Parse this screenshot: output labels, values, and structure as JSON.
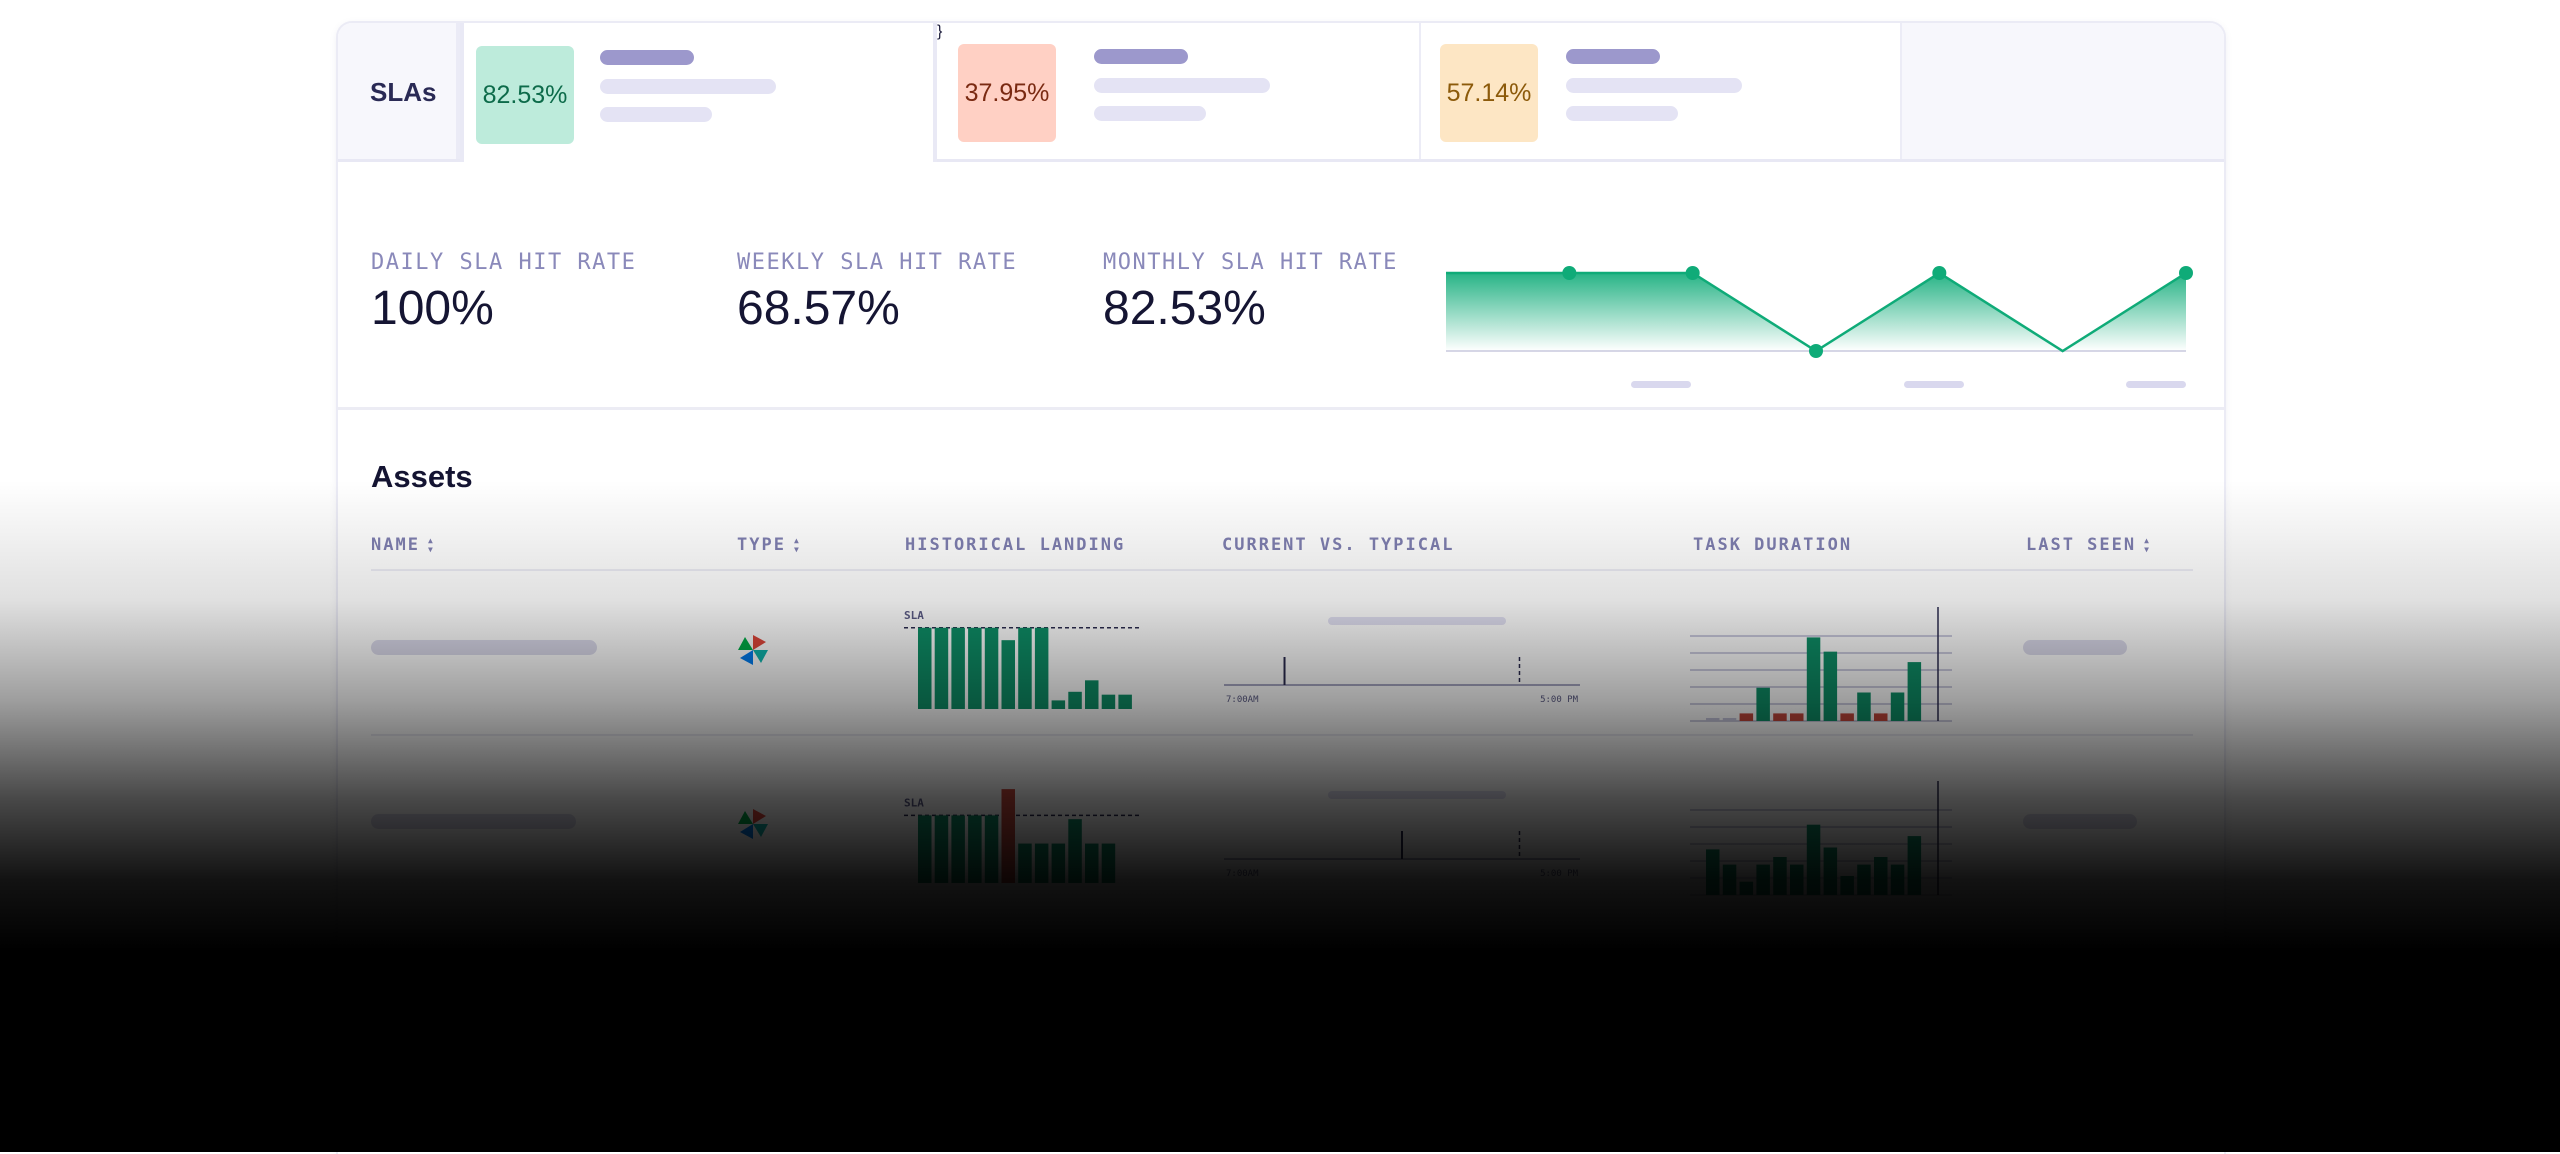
{
  "tabs": {
    "label": "SLAs",
    "items": [
      {
        "value": "82.53%",
        "tone": "green",
        "active": true
      },
      {
        "value": "37.95%",
        "tone": "red",
        "active": false
      },
      {
        "value": "57.14%",
        "tone": "amber",
        "active": false
      }
    ]
  },
  "stats": [
    {
      "label": "DAILY SLA HIT RATE",
      "value": "100%"
    },
    {
      "label": "WEEKLY SLA HIT RATE",
      "value": "68.57%"
    },
    {
      "label": "MONTHLY SLA HIT RATE",
      "value": "82.53%"
    }
  ],
  "trend_chart": {
    "type": "line",
    "values": [
      100,
      100,
      100,
      0,
      100,
      0,
      100
    ],
    "markers": [
      false,
      true,
      true,
      true,
      true,
      false,
      true
    ],
    "ylim": [
      0,
      100
    ],
    "color": "#0fab78"
  },
  "assets": {
    "title": "Assets",
    "columns": [
      {
        "label": "NAME",
        "sortable": true
      },
      {
        "label": "TYPE",
        "sortable": true
      },
      {
        "label": "HISTORICAL LANDING",
        "sortable": false
      },
      {
        "label": "CURRENT VS. TYPICAL",
        "sortable": false
      },
      {
        "label": "TASK DURATION",
        "sortable": false
      },
      {
        "label": "LAST SEEN",
        "sortable": true
      }
    ],
    "rows": [
      {
        "type_icon": "pinwheel-icon",
        "landing": {
          "sla_label": "SLA",
          "sla_level": 0.85,
          "bars": [
            0.85,
            0.85,
            0.85,
            0.85,
            0.85,
            0.72,
            0.85,
            0.85,
            0.09,
            0.18,
            0.3,
            0.15,
            0.15
          ],
          "missed": [
            false,
            false,
            false,
            false,
            false,
            false,
            false,
            false,
            false,
            false,
            false,
            false,
            false
          ]
        },
        "timeline": {
          "start_label": "7:00AM",
          "end_label": "5:00 PM",
          "current": 0.17,
          "typical": 0.83
        },
        "duration": {
          "bars": [
            0.03,
            0.03,
            0.08,
            0.35,
            0.08,
            0.08,
            0.88,
            0.73,
            0.08,
            0.3,
            0.08,
            0.3,
            0.62
          ],
          "status": [
            "neutral",
            "neutral",
            "missed",
            "ok",
            "missed",
            "missed",
            "ok",
            "ok",
            "missed",
            "ok",
            "missed",
            "ok",
            "ok"
          ]
        }
      },
      {
        "type_icon": "pinwheel-icon",
        "landing": {
          "sla_label": "SLA",
          "sla_level": 0.72,
          "bars": [
            0.72,
            0.72,
            0.72,
            0.72,
            0.72,
            1.0,
            0.42,
            0.42,
            0.42,
            0.68,
            0.42,
            0.42
          ],
          "missed": [
            false,
            false,
            false,
            false,
            false,
            true,
            false,
            false,
            false,
            false,
            false,
            false
          ]
        },
        "timeline": {
          "start_label": "7:00AM",
          "end_label": "5:00 PM",
          "current": 0.5,
          "typical": 0.83
        },
        "duration": {
          "bars": [
            0.48,
            0.32,
            0.14,
            0.32,
            0.4,
            0.32,
            0.74,
            0.5,
            0.2,
            0.32,
            0.4,
            0.32,
            0.62
          ],
          "status": [
            "ok",
            "ok",
            "ok",
            "ok",
            "ok",
            "ok",
            "ok",
            "ok",
            "ok",
            "ok",
            "ok",
            "ok",
            "ok"
          ]
        }
      }
    ]
  },
  "colors": {
    "success": "#0e8f67",
    "missed": "#c4473b",
    "neutral": "#c8c8de",
    "axis": "#5b5b85",
    "accent": "#9c98cc"
  }
}
